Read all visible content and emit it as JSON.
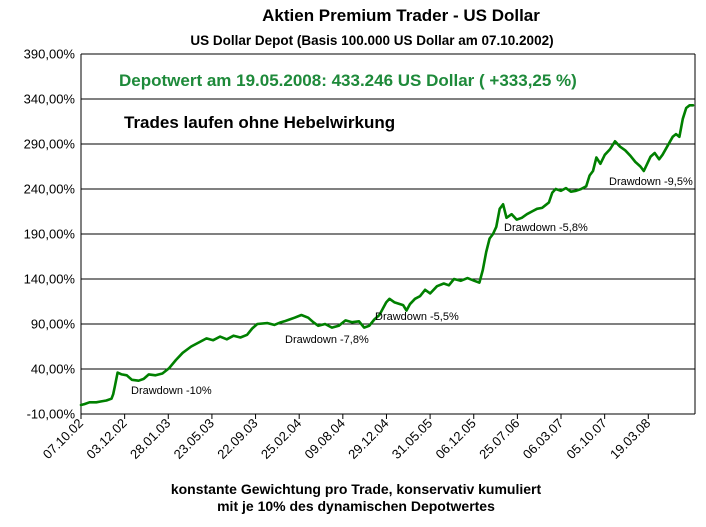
{
  "chart_data": {
    "type": "line",
    "title": "Aktien Premium Trader - US Dollar",
    "subtitle": "US Dollar Depot (Basis 100.000 US Dollar am 07.10.2002)",
    "xlabel_line1": "konstante Gewichtung pro Trade, konservativ kumuliert",
    "xlabel_line2": "mit je 10% des dynamischen Depotwertes",
    "ylim": [
      -10,
      390
    ],
    "yticks": [
      "-10,00%",
      "40,00%",
      "90,00%",
      "140,00%",
      "190,00%",
      "240,00%",
      "290,00%",
      "340,00%",
      "390,00%"
    ],
    "yticks_values": [
      -10,
      40,
      90,
      140,
      190,
      240,
      290,
      340,
      390
    ],
    "xticks": [
      "07.10.02",
      "03.12.02",
      "28.01.03",
      "23.05.03",
      "22.09.03",
      "25.02.04",
      "09.08.04",
      "29.12.04",
      "31.05.05",
      "06.12.05",
      "25.07.06",
      "06.03.07",
      "05.10.07",
      "19.03.08"
    ],
    "grid": true,
    "line_color": "#008000",
    "annotation_color": "#1e8a3a",
    "annotations": {
      "depotwert": "Depotwert am 19.05.2008: 433.246 US Dollar ( +333,25 %)",
      "hebel": "Trades laufen ohne Hebelwirkung",
      "dd1": "Drawdown -10%",
      "dd2": "Drawdown -7,8%",
      "dd3": "Drawdown -5,5%",
      "dd4": "Drawdown -5,8%",
      "dd5": "Drawdown -9,5%"
    },
    "series": [
      {
        "values": [
          [
            0,
            0
          ],
          [
            0.1,
            1
          ],
          [
            0.25,
            3
          ],
          [
            0.45,
            3
          ],
          [
            0.6,
            4
          ],
          [
            0.75,
            5
          ],
          [
            0.9,
            7
          ],
          [
            0.95,
            12
          ],
          [
            1.0,
            21
          ],
          [
            1.08,
            36
          ],
          [
            1.2,
            34
          ],
          [
            1.35,
            33
          ],
          [
            1.5,
            28
          ],
          [
            1.7,
            27
          ],
          [
            1.85,
            29
          ],
          [
            2.0,
            34
          ],
          [
            2.2,
            33
          ],
          [
            2.4,
            35
          ],
          [
            2.6,
            41
          ],
          [
            2.8,
            50
          ],
          [
            3.0,
            58
          ],
          [
            3.25,
            65
          ],
          [
            3.5,
            70
          ],
          [
            3.7,
            74
          ],
          [
            3.9,
            72
          ],
          [
            4.1,
            76
          ],
          [
            4.3,
            73
          ],
          [
            4.5,
            77
          ],
          [
            4.7,
            75
          ],
          [
            4.9,
            78
          ],
          [
            5.05,
            85
          ],
          [
            5.2,
            90
          ],
          [
            5.5,
            91
          ],
          [
            5.7,
            89
          ],
          [
            5.9,
            92
          ],
          [
            6.0,
            93
          ],
          [
            6.15,
            95
          ],
          [
            6.3,
            97
          ],
          [
            6.5,
            100
          ],
          [
            6.7,
            97
          ],
          [
            6.85,
            92
          ],
          [
            7.0,
            88
          ],
          [
            7.2,
            90
          ],
          [
            7.4,
            86
          ],
          [
            7.6,
            88
          ],
          [
            7.8,
            94
          ],
          [
            8.0,
            92
          ],
          [
            8.2,
            93
          ],
          [
            8.35,
            86
          ],
          [
            8.5,
            88
          ],
          [
            8.65,
            95
          ],
          [
            8.8,
            100
          ],
          [
            9.0,
            114
          ],
          [
            9.1,
            118
          ],
          [
            9.25,
            114
          ],
          [
            9.5,
            111
          ],
          [
            9.6,
            105
          ],
          [
            9.7,
            112
          ],
          [
            9.85,
            118
          ],
          [
            10.0,
            121
          ],
          [
            10.15,
            128
          ],
          [
            10.3,
            124
          ],
          [
            10.5,
            132
          ],
          [
            10.7,
            135
          ],
          [
            10.85,
            133
          ],
          [
            11.0,
            140
          ],
          [
            11.2,
            138
          ],
          [
            11.4,
            141
          ],
          [
            11.6,
            138
          ],
          [
            11.75,
            136
          ],
          [
            11.85,
            150
          ],
          [
            11.95,
            170
          ],
          [
            12.05,
            185
          ],
          [
            12.15,
            190
          ],
          [
            12.25,
            198
          ],
          [
            12.35,
            218
          ],
          [
            12.45,
            223
          ],
          [
            12.55,
            208
          ],
          [
            12.7,
            212
          ],
          [
            12.85,
            206
          ],
          [
            13.0,
            208
          ],
          [
            13.15,
            212
          ],
          [
            13.3,
            215
          ],
          [
            13.45,
            218
          ],
          [
            13.6,
            219
          ],
          [
            13.7,
            222
          ],
          [
            13.8,
            225
          ],
          [
            13.9,
            236
          ],
          [
            14.0,
            240
          ],
          [
            14.15,
            238
          ],
          [
            14.3,
            241
          ],
          [
            14.45,
            237
          ],
          [
            14.6,
            238
          ],
          [
            14.75,
            240
          ],
          [
            14.9,
            243
          ],
          [
            15.0,
            255
          ],
          [
            15.1,
            260
          ],
          [
            15.2,
            275
          ],
          [
            15.32,
            268
          ],
          [
            15.45,
            278
          ],
          [
            15.6,
            284
          ],
          [
            15.75,
            293
          ],
          [
            15.9,
            287
          ],
          [
            16.05,
            283
          ],
          [
            16.2,
            277
          ],
          [
            16.35,
            270
          ],
          [
            16.5,
            265
          ],
          [
            16.6,
            260
          ],
          [
            16.7,
            268
          ],
          [
            16.8,
            276
          ],
          [
            16.92,
            280
          ],
          [
            17.05,
            273
          ],
          [
            17.15,
            278
          ],
          [
            17.3,
            288
          ],
          [
            17.45,
            298
          ],
          [
            17.55,
            301
          ],
          [
            17.65,
            298
          ],
          [
            17.75,
            318
          ],
          [
            17.85,
            330
          ],
          [
            17.95,
            333
          ],
          [
            18.05,
            333
          ]
        ]
      }
    ]
  }
}
